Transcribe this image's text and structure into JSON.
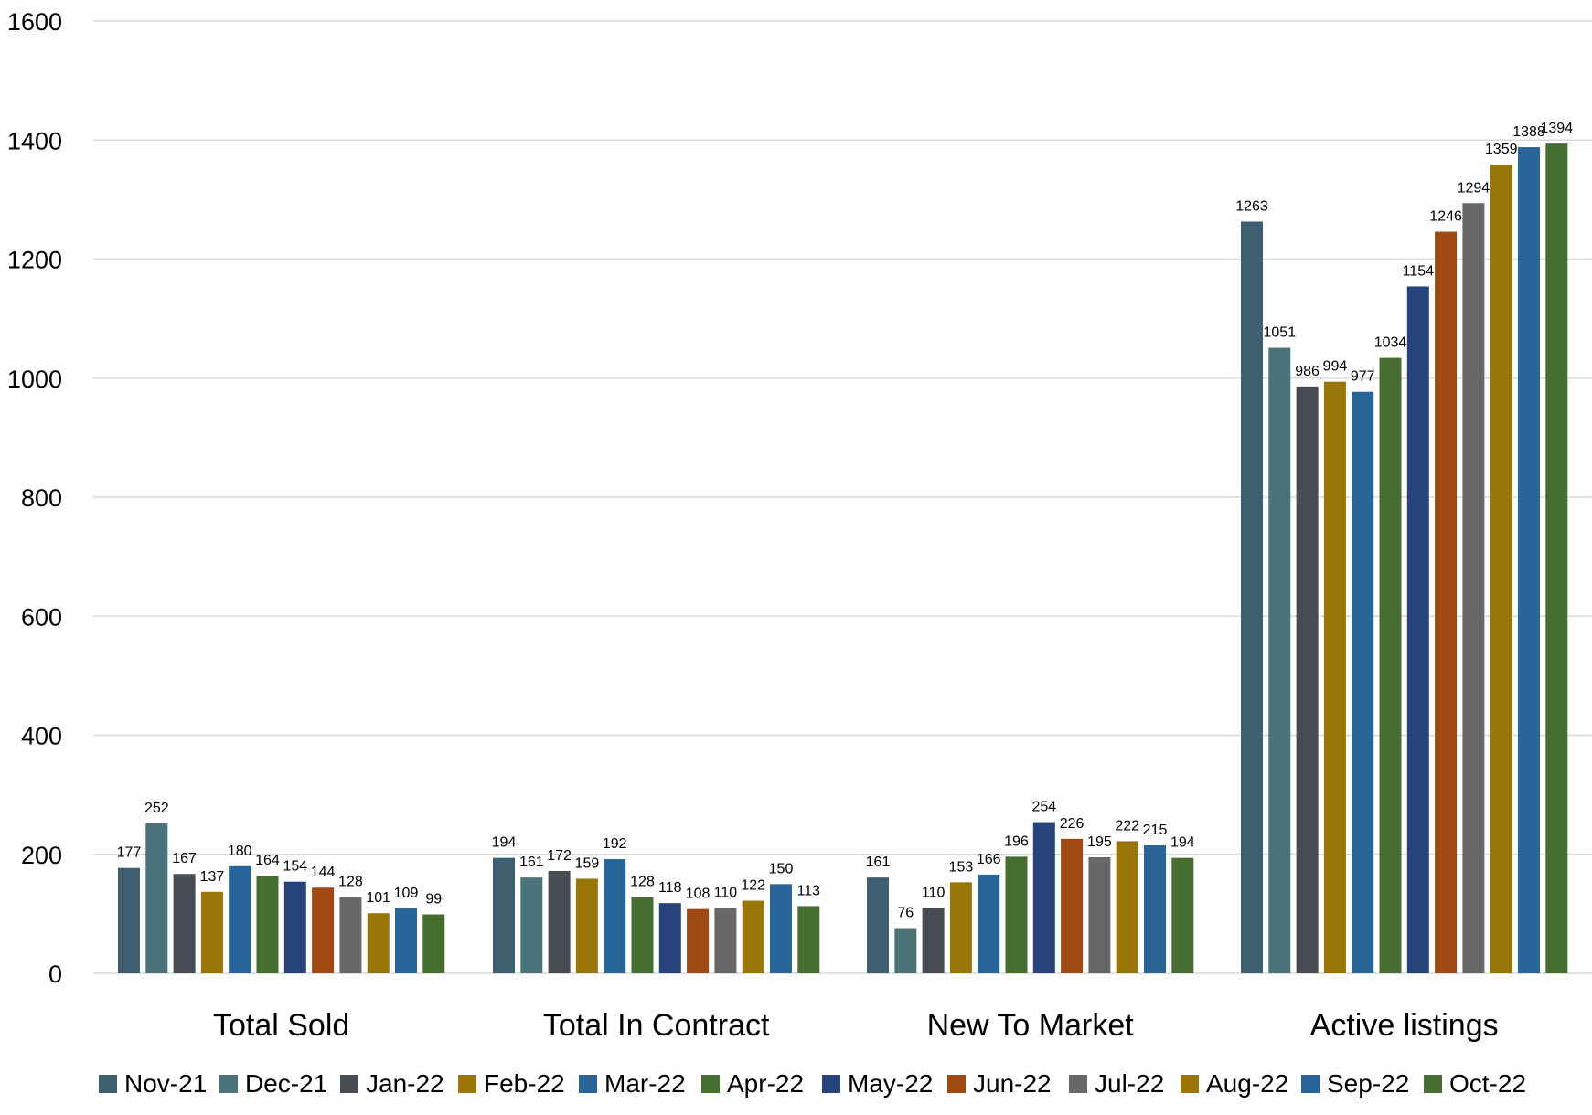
{
  "chart_data": {
    "type": "bar",
    "categories": [
      "Total Sold",
      "Total In Contract",
      "New To Market",
      "Active listings"
    ],
    "series": [
      {
        "name": "Nov-21",
        "color": "#3d5f70",
        "values": [
          177,
          194,
          161,
          1263
        ]
      },
      {
        "name": "Dec-21",
        "color": "#4a7479",
        "values": [
          252,
          161,
          76,
          1051
        ]
      },
      {
        "name": "Jan-22",
        "color": "#464c51",
        "values": [
          167,
          172,
          110,
          986
        ]
      },
      {
        "name": "Feb-22",
        "color": "#9a7508",
        "values": [
          137,
          159,
          153,
          994
        ]
      },
      {
        "name": "Mar-22",
        "color": "#2a6599",
        "values": [
          180,
          192,
          166,
          977
        ]
      },
      {
        "name": "Apr-22",
        "color": "#456e30",
        "values": [
          164,
          128,
          196,
          1034
        ]
      },
      {
        "name": "May-22",
        "color": "#26447a",
        "values": [
          154,
          118,
          254,
          1154
        ]
      },
      {
        "name": "Jun-22",
        "color": "#a14912",
        "values": [
          144,
          108,
          226,
          1246
        ]
      },
      {
        "name": "Jul-22",
        "color": "#686868",
        "values": [
          128,
          110,
          195,
          1294
        ]
      },
      {
        "name": "Aug-22",
        "color": "#9a7508",
        "values": [
          101,
          122,
          222,
          1359
        ]
      },
      {
        "name": "Sep-22",
        "color": "#2a6599",
        "values": [
          109,
          150,
          215,
          1388
        ]
      },
      {
        "name": "Oct-22",
        "color": "#456e30",
        "values": [
          99,
          113,
          194,
          1394
        ]
      }
    ],
    "yticks": [
      "0",
      "200",
      "400",
      "600",
      "800",
      "1000",
      "1200",
      "1400",
      "1600"
    ],
    "ylim": [
      0,
      1600
    ],
    "title": "",
    "xlabel": "",
    "ylabel": "",
    "grid": true,
    "legend_position": "bottom",
    "data_labels": true
  }
}
